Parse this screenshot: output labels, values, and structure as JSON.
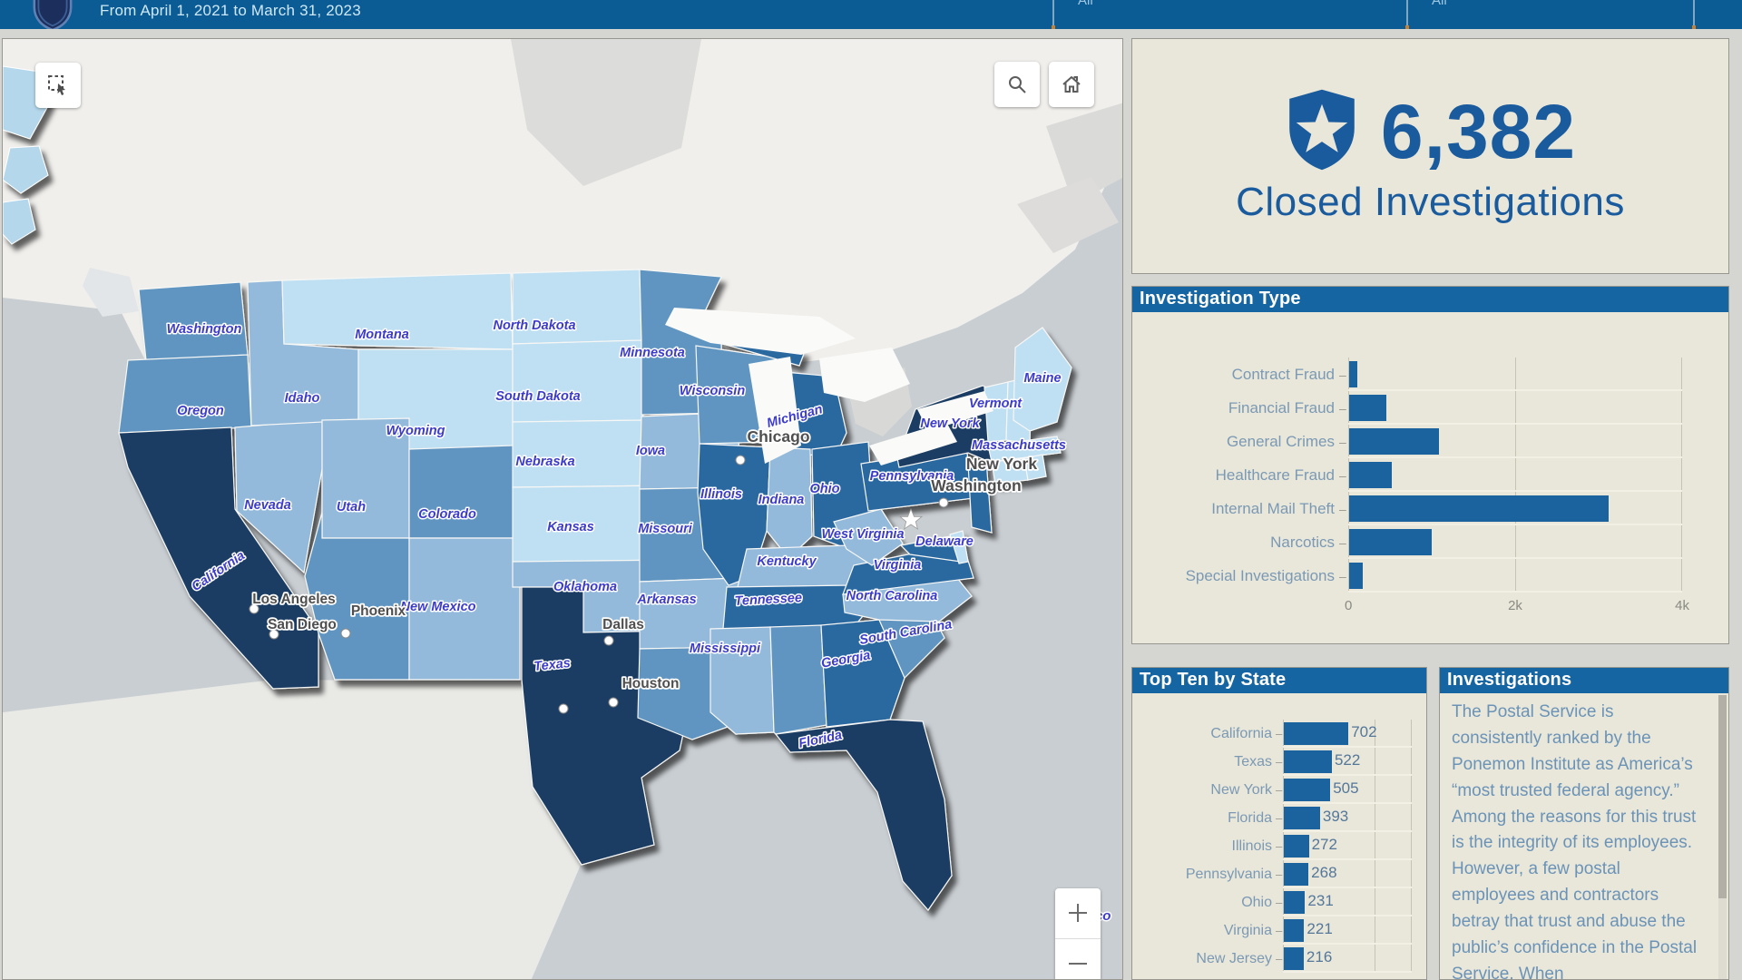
{
  "header": {
    "date_range": "From April 1, 2021 to March 31, 2023",
    "filters": [
      {
        "label": "All"
      },
      {
        "label": "All"
      }
    ]
  },
  "stat": {
    "value": "6,382",
    "label": "Closed Investigations"
  },
  "investigation_type": {
    "title": "Investigation Type"
  },
  "top_ten": {
    "title": "Top Ten by State"
  },
  "investigations": {
    "title": "Investigations",
    "body": "The Postal Service is consistently ranked by the Ponemon Institute as America’s “most trusted federal agency.” Among the reasons for this trust is the integrity of its employees. However, a few postal employees and contractors betray that trust and abuse the public’s confidence in the Postal Service. When"
  },
  "chart_data": [
    {
      "type": "bar",
      "title": "Investigation Type",
      "orientation": "horizontal",
      "categories": [
        "Contract Fraud",
        "Financial Fraud",
        "General Crimes",
        "Healthcare Fraud",
        "Internal Mail Theft",
        "Narcotics",
        "Special Investigations"
      ],
      "values": [
        100,
        450,
        1080,
        510,
        3110,
        990,
        165
      ],
      "xlabel": "",
      "ylabel": "",
      "xlim": [
        0,
        4000
      ],
      "x_ticks": [
        "0",
        "2k",
        "4k"
      ],
      "grid": true,
      "bar_color": "#1b639f"
    },
    {
      "type": "bar",
      "title": "Top Ten by State",
      "orientation": "horizontal",
      "categories": [
        "California",
        "Texas",
        "New York",
        "Florida",
        "Illinois",
        "Pennsylvania",
        "Ohio",
        "Virginia",
        "New Jersey"
      ],
      "values": [
        702,
        522,
        505,
        393,
        272,
        268,
        231,
        221,
        216
      ],
      "data_labels": [
        "702",
        "522",
        "505",
        "393",
        "272",
        "268",
        "231",
        "221",
        "216"
      ],
      "xlim": [
        0,
        1400
      ],
      "grid": true,
      "bar_color": "#1b639f"
    }
  ],
  "colors": {
    "header_bg": "#0b5c95",
    "panel_bg": "#e9e7da",
    "panel_header_bg": "#1565a3",
    "accent_blue": "#1a5b9e",
    "bar_blue": "#1b639f",
    "ocean": "#c9ced2",
    "land": "#f0efec",
    "tiers": {
      "t1": "#bfdff2",
      "t2": "#93badb",
      "t3": "#5e95c0",
      "t4": "#2a67a0",
      "t5": "#1c3c63"
    },
    "state_label": "#3c3cc8",
    "city_label": "#4f4f4f"
  },
  "map": {
    "controls": {
      "marquee": "marquee-select-icon",
      "search": "search-icon",
      "home": "home-icon",
      "zoom_in": "+",
      "zoom_out": "−"
    },
    "mexico_label": "Mexico",
    "states": [
      {
        "id": "wa",
        "name": "Washington",
        "tier": "t3",
        "label": true
      },
      {
        "id": "or",
        "name": "Oregon",
        "tier": "t3",
        "label": true
      },
      {
        "id": "ca",
        "name": "California",
        "tier": "t5",
        "label": true
      },
      {
        "id": "nv",
        "name": "Nevada",
        "tier": "t2",
        "label": true
      },
      {
        "id": "id",
        "name": "Idaho",
        "tier": "t2",
        "label": true
      },
      {
        "id": "mt",
        "name": "Montana",
        "tier": "t1",
        "label": true
      },
      {
        "id": "wy",
        "name": "Wyoming",
        "tier": "t1",
        "label": true
      },
      {
        "id": "ut",
        "name": "Utah",
        "tier": "t2",
        "label": true
      },
      {
        "id": "co",
        "name": "Colorado",
        "tier": "t3",
        "label": true
      },
      {
        "id": "az",
        "name": "Arizona",
        "tier": "t3",
        "label": false
      },
      {
        "id": "nm",
        "name": "New Mexico",
        "tier": "t2",
        "label": true
      },
      {
        "id": "nd",
        "name": "North Dakota",
        "tier": "t1",
        "label": true
      },
      {
        "id": "sd",
        "name": "South Dakota",
        "tier": "t1",
        "label": true
      },
      {
        "id": "ne",
        "name": "Nebraska",
        "tier": "t1",
        "label": true
      },
      {
        "id": "ks",
        "name": "Kansas",
        "tier": "t1",
        "label": true
      },
      {
        "id": "ok",
        "name": "Oklahoma",
        "tier": "t2",
        "label": true
      },
      {
        "id": "tx",
        "name": "Texas",
        "tier": "t5",
        "label": true
      },
      {
        "id": "mn",
        "name": "Minnesota",
        "tier": "t3",
        "label": true
      },
      {
        "id": "ia",
        "name": "Iowa",
        "tier": "t2",
        "label": true
      },
      {
        "id": "mo",
        "name": "Missouri",
        "tier": "t3",
        "label": true
      },
      {
        "id": "ar",
        "name": "Arkansas",
        "tier": "t2",
        "label": true
      },
      {
        "id": "la",
        "name": "Louisiana",
        "tier": "t3",
        "label": false
      },
      {
        "id": "wi",
        "name": "Wisconsin",
        "tier": "t3",
        "label": true
      },
      {
        "id": "mi",
        "name": "Michigan",
        "tier": "t4",
        "label": true
      },
      {
        "id": "il",
        "name": "Illinois",
        "tier": "t4",
        "label": true
      },
      {
        "id": "in",
        "name": "Indiana",
        "tier": "t2",
        "label": true
      },
      {
        "id": "oh",
        "name": "Ohio",
        "tier": "t4",
        "label": true
      },
      {
        "id": "ky",
        "name": "Kentucky",
        "tier": "t2",
        "label": true
      },
      {
        "id": "tn",
        "name": "Tennessee",
        "tier": "t4",
        "label": true
      },
      {
        "id": "ms",
        "name": "Mississippi",
        "tier": "t2",
        "label": true
      },
      {
        "id": "al",
        "name": "Alabama",
        "tier": "t3",
        "label": false
      },
      {
        "id": "ga",
        "name": "Georgia",
        "tier": "t4",
        "label": true
      },
      {
        "id": "fl",
        "name": "Florida",
        "tier": "t5",
        "label": true
      },
      {
        "id": "sc",
        "name": "South Carolina",
        "tier": "t3",
        "label": true
      },
      {
        "id": "nc",
        "name": "North Carolina",
        "tier": "t2",
        "label": true
      },
      {
        "id": "va",
        "name": "Virginia",
        "tier": "t4",
        "label": true
      },
      {
        "id": "wv",
        "name": "West Virginia",
        "tier": "t2",
        "label": true
      },
      {
        "id": "md",
        "name": "Maryland",
        "tier": "t4",
        "label": false
      },
      {
        "id": "de",
        "name": "Delaware",
        "tier": "t1",
        "label": true
      },
      {
        "id": "pa",
        "name": "Pennsylvania",
        "tier": "t4",
        "label": true
      },
      {
        "id": "nj",
        "name": "New Jersey",
        "tier": "t4",
        "label": false
      },
      {
        "id": "ny",
        "name": "New York",
        "tier": "t5",
        "label": true
      },
      {
        "id": "vt",
        "name": "Vermont",
        "tier": "t1",
        "label": true
      },
      {
        "id": "nh",
        "name": "New Hampshire",
        "tier": "t1",
        "label": false
      },
      {
        "id": "ma",
        "name": "Massachusetts",
        "tier": "t1",
        "label": true
      },
      {
        "id": "ct",
        "name": "Connecticut",
        "tier": "t1",
        "label": false
      },
      {
        "id": "ri",
        "name": "Rhode Island",
        "tier": "t1",
        "label": false
      },
      {
        "id": "me",
        "name": "Maine",
        "tier": "t1",
        "label": true
      }
    ],
    "cities": [
      {
        "id": "los-angeles",
        "name": "Los Angeles"
      },
      {
        "id": "san-diego",
        "name": "San Diego"
      },
      {
        "id": "phoenix",
        "name": "Phoenix"
      },
      {
        "id": "dallas",
        "name": "Dallas"
      },
      {
        "id": "houston",
        "name": "Houston"
      },
      {
        "id": "chicago",
        "name": "Chicago"
      },
      {
        "id": "new-york-city",
        "name": "New York"
      },
      {
        "id": "washington-dc",
        "name": "Washington"
      }
    ]
  }
}
